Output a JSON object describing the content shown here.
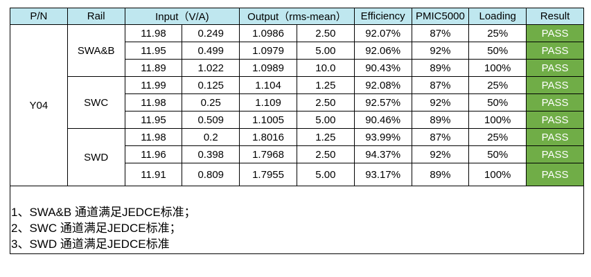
{
  "table": {
    "headers": {
      "pn": "P/N",
      "rail": "Rail",
      "input": "Input（V/A)",
      "output": "Output（rms-mean）",
      "efficiency": "Efficiency",
      "pmic": "PMIC5000",
      "loading": "Loading",
      "result": "Result"
    },
    "pn": "Y04",
    "rails": [
      {
        "name": "SWA&B",
        "rows": [
          {
            "vin": "11.98",
            "iin": "0.249",
            "vout": "1.0986",
            "iout": "2.50",
            "eff": "92.07%",
            "pmic": "87%",
            "load": "25%",
            "result": "PASS"
          },
          {
            "vin": "11.95",
            "iin": "0.499",
            "vout": "1.0979",
            "iout": "5.00",
            "eff": "92.06%",
            "pmic": "92%",
            "load": "50%",
            "result": "PASS"
          },
          {
            "vin": "11.89",
            "iin": "1.022",
            "vout": "1.0989",
            "iout": "10.0",
            "eff": "90.43%",
            "pmic": "89%",
            "load": "100%",
            "result": "PASS"
          }
        ]
      },
      {
        "name": "SWC",
        "rows": [
          {
            "vin": "11.99",
            "iin": "0.125",
            "vout": "1.104",
            "iout": "1.25",
            "eff": "92.08%",
            "pmic": "87%",
            "load": "25%",
            "result": "PASS"
          },
          {
            "vin": "11.98",
            "iin": "0.25",
            "vout": "1.109",
            "iout": "2.50",
            "eff": "92.57%",
            "pmic": "92%",
            "load": "50%",
            "result": "PASS"
          },
          {
            "vin": "11.95",
            "iin": "0.509",
            "vout": "1.1005",
            "iout": "5.00",
            "eff": "90.46%",
            "pmic": "89%",
            "load": "100%",
            "result": "PASS"
          }
        ]
      },
      {
        "name": "SWD",
        "rows": [
          {
            "vin": "11.98",
            "iin": "0.2",
            "vout": "1.8016",
            "iout": "1.25",
            "eff": "93.99%",
            "pmic": "87%",
            "load": "25%",
            "result": "PASS"
          },
          {
            "vin": "11.96",
            "iin": "0.398",
            "vout": "1.7968",
            "iout": "2.50",
            "eff": "94.37%",
            "pmic": "92%",
            "load": "50%",
            "result": "PASS"
          },
          {
            "vin": "11.91",
            "iin": "0.809",
            "vout": "1.7955",
            "iout": "5.00",
            "eff": "93.17%",
            "pmic": "89%",
            "load": "100%",
            "result": "PASS"
          }
        ]
      }
    ]
  },
  "notes": [
    "1、SWA&B 通道满足JEDCE标准；",
    "2、SWC 通道满足JEDCE标准；",
    "3、SWD 通道满足JEDCE标准"
  ],
  "colors": {
    "header_bg": "#bfe7ef",
    "pass_bg": "#70ad47",
    "pass_text": "#ffffff"
  }
}
